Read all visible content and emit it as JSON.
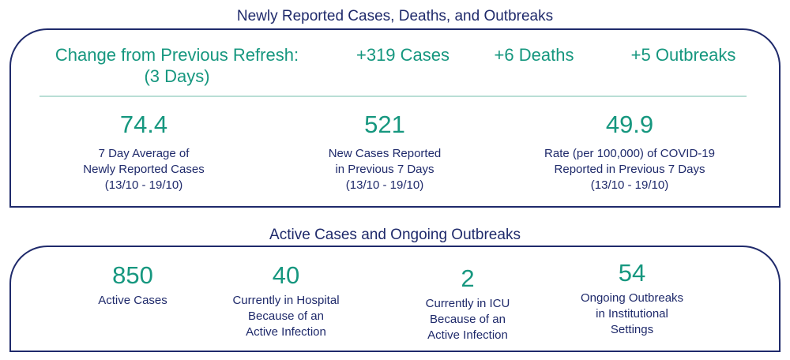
{
  "top": {
    "title": "Newly Reported Cases, Deaths, and Outbreaks",
    "change": {
      "label_line1": "Change from Previous Refresh:",
      "label_line2": "(3 Days)",
      "cases": "+319 Cases",
      "deaths": "+6 Deaths",
      "outbreaks": "+5 Outbreaks"
    },
    "metrics": [
      {
        "value": "74.4",
        "line1": "7 Day Average of",
        "line2": "Newly Reported Cases",
        "line3": "(13/10 - 19/10)"
      },
      {
        "value": "521",
        "line1": "New Cases Reported",
        "line2": "in Previous 7 Days",
        "line3": "(13/10 - 19/10)"
      },
      {
        "value": "49.9",
        "line1": "Rate (per 100,000) of COVID-19",
        "line2": "Reported in Previous 7 Days",
        "line3": "(13/10 - 19/10)"
      }
    ]
  },
  "bottom": {
    "title": "Active Cases and Ongoing Outbreaks",
    "metrics": [
      {
        "value": "850",
        "line1": "Active Cases",
        "line2": "",
        "line3": ""
      },
      {
        "value": "40",
        "line1": "Currently in Hospital",
        "line2": "Because of an",
        "line3": "Active Infection"
      },
      {
        "value": "2",
        "line1": "Currently in ICU",
        "line2": "Because of an",
        "line3": "Active Infection"
      },
      {
        "value": "54",
        "line1": "Ongoing Outbreaks",
        "line2": "in Institutional",
        "line3": "Settings"
      }
    ]
  },
  "colors": {
    "navy": "#1f2a6b",
    "teal": "#16977f",
    "divider": "#b9ded5"
  }
}
